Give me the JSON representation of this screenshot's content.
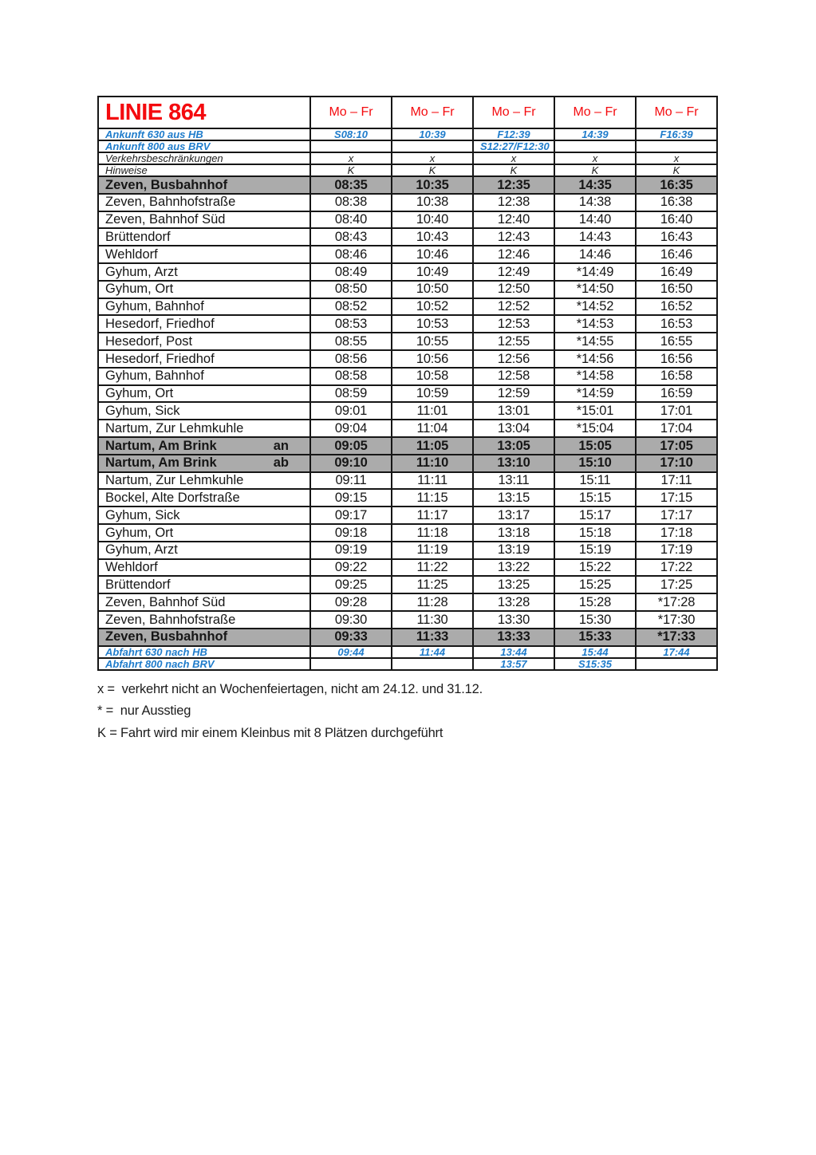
{
  "header": {
    "title": "LINIE 864",
    "columns": [
      "Mo – Fr",
      "Mo – Fr",
      "Mo – Fr",
      "Mo – Fr",
      "Mo – Fr"
    ]
  },
  "info_rows": [
    {
      "label": "Ankunft 630 aus HB",
      "style": "blue",
      "values": [
        "S08:10",
        "10:39",
        "F12:39",
        "14:39",
        "F16:39"
      ]
    },
    {
      "label": "Ankunft 800 aus BRV",
      "style": "blue",
      "values": [
        "",
        "",
        "S12:27/F12:30",
        "",
        ""
      ]
    },
    {
      "label": "Verkehrsbeschränkungen",
      "style": "black",
      "values": [
        "x",
        "x",
        "x",
        "x",
        "x"
      ]
    },
    {
      "label": "Hinweise",
      "style": "black",
      "values": [
        "K",
        "K",
        "K",
        "K",
        "K"
      ]
    }
  ],
  "stops": [
    {
      "name": "Zeven, Busbahnhof",
      "tag": "",
      "highlight": true,
      "times": [
        "08:35",
        "10:35",
        "12:35",
        "14:35",
        "16:35"
      ]
    },
    {
      "name": "Zeven, Bahnhofstraße",
      "tag": "",
      "highlight": false,
      "times": [
        "08:38",
        "10:38",
        "12:38",
        "14:38",
        "16:38"
      ]
    },
    {
      "name": "Zeven, Bahnhof Süd",
      "tag": "",
      "highlight": false,
      "times": [
        "08:40",
        "10:40",
        "12:40",
        "14:40",
        "16:40"
      ]
    },
    {
      "name": "Brüttendorf",
      "tag": "",
      "highlight": false,
      "times": [
        "08:43",
        "10:43",
        "12:43",
        "14:43",
        "16:43"
      ]
    },
    {
      "name": "Wehldorf",
      "tag": "",
      "highlight": false,
      "times": [
        "08:46",
        "10:46",
        "12:46",
        "14:46",
        "16:46"
      ]
    },
    {
      "name": "Gyhum, Arzt",
      "tag": "",
      "highlight": false,
      "times": [
        "08:49",
        "10:49",
        "12:49",
        "*14:49",
        "16:49"
      ]
    },
    {
      "name": "Gyhum, Ort",
      "tag": "",
      "highlight": false,
      "times": [
        "08:50",
        "10:50",
        "12:50",
        "*14:50",
        "16:50"
      ]
    },
    {
      "name": "Gyhum, Bahnhof",
      "tag": "",
      "highlight": false,
      "times": [
        "08:52",
        "10:52",
        "12:52",
        "*14:52",
        "16:52"
      ]
    },
    {
      "name": "Hesedorf, Friedhof",
      "tag": "",
      "highlight": false,
      "times": [
        "08:53",
        "10:53",
        "12:53",
        "*14:53",
        "16:53"
      ]
    },
    {
      "name": "Hesedorf, Post",
      "tag": "",
      "highlight": false,
      "times": [
        "08:55",
        "10:55",
        "12:55",
        "*14:55",
        "16:55"
      ]
    },
    {
      "name": "Hesedorf, Friedhof",
      "tag": "",
      "highlight": false,
      "times": [
        "08:56",
        "10:56",
        "12:56",
        "*14:56",
        "16:56"
      ]
    },
    {
      "name": "Gyhum, Bahnhof",
      "tag": "",
      "highlight": false,
      "times": [
        "08:58",
        "10:58",
        "12:58",
        "*14:58",
        "16:58"
      ]
    },
    {
      "name": "Gyhum, Ort",
      "tag": "",
      "highlight": false,
      "times": [
        "08:59",
        "10:59",
        "12:59",
        "*14:59",
        "16:59"
      ]
    },
    {
      "name": "Gyhum, Sick",
      "tag": "",
      "highlight": false,
      "times": [
        "09:01",
        "11:01",
        "13:01",
        "*15:01",
        "17:01"
      ]
    },
    {
      "name": "Nartum, Zur Lehmkuhle",
      "tag": "",
      "highlight": false,
      "times": [
        "09:04",
        "11:04",
        "13:04",
        "*15:04",
        "17:04"
      ]
    },
    {
      "name": "Nartum, Am Brink",
      "tag": "an",
      "highlight": true,
      "times": [
        "09:05",
        "11:05",
        "13:05",
        "15:05",
        "17:05"
      ]
    },
    {
      "name": "Nartum, Am Brink",
      "tag": "ab",
      "highlight": true,
      "times": [
        "09:10",
        "11:10",
        "13:10",
        "15:10",
        "17:10"
      ]
    },
    {
      "name": "Nartum, Zur Lehmkuhle",
      "tag": "",
      "highlight": false,
      "times": [
        "09:11",
        "11:11",
        "13:11",
        "15:11",
        "17:11"
      ]
    },
    {
      "name": "Bockel, Alte Dorfstraße",
      "tag": "",
      "highlight": false,
      "times": [
        "09:15",
        "11:15",
        "13:15",
        "15:15",
        "17:15"
      ]
    },
    {
      "name": "Gyhum, Sick",
      "tag": "",
      "highlight": false,
      "times": [
        "09:17",
        "11:17",
        "13:17",
        "15:17",
        "17:17"
      ]
    },
    {
      "name": "Gyhum, Ort",
      "tag": "",
      "highlight": false,
      "times": [
        "09:18",
        "11:18",
        "13:18",
        "15:18",
        "17:18"
      ]
    },
    {
      "name": "Gyhum, Arzt",
      "tag": "",
      "highlight": false,
      "times": [
        "09:19",
        "11:19",
        "13:19",
        "15:19",
        "17:19"
      ]
    },
    {
      "name": "Wehldorf",
      "tag": "",
      "highlight": false,
      "times": [
        "09:22",
        "11:22",
        "13:22",
        "15:22",
        "17:22"
      ]
    },
    {
      "name": "Brüttendorf",
      "tag": "",
      "highlight": false,
      "times": [
        "09:25",
        "11:25",
        "13:25",
        "15:25",
        "17:25"
      ]
    },
    {
      "name": "Zeven, Bahnhof Süd",
      "tag": "",
      "highlight": false,
      "times": [
        "09:28",
        "11:28",
        "13:28",
        "15:28",
        "*17:28"
      ]
    },
    {
      "name": "Zeven, Bahnhofstraße",
      "tag": "",
      "highlight": false,
      "times": [
        "09:30",
        "11:30",
        "13:30",
        "15:30",
        "*17:30"
      ]
    },
    {
      "name": "Zeven, Busbahnhof",
      "tag": "",
      "highlight": true,
      "times": [
        "09:33",
        "11:33",
        "13:33",
        "15:33",
        "*17:33"
      ]
    }
  ],
  "footer_rows": [
    {
      "label": "Abfahrt 630 nach HB",
      "style": "blue",
      "values": [
        "09:44",
        "11:44",
        "13:44",
        "15:44",
        "17:44"
      ]
    },
    {
      "label": "Abfahrt 800 nach BRV",
      "style": "blue",
      "values": [
        "",
        "",
        "13:57",
        "S15:35",
        ""
      ]
    }
  ],
  "notes": [
    "x =  verkehrt nicht an Wochenfeiertagen, nicht am 24.12. und 31.12.",
    "* =  nur Ausstieg",
    "K = Fahrt wird mir einem Kleinbus mit 8 Plätzen durchgeführt"
  ],
  "colors": {
    "line_red": "#f40b0f",
    "info_blue": "#1f7ccb",
    "highlight_gray": "#ababab",
    "border_black": "#161616"
  }
}
